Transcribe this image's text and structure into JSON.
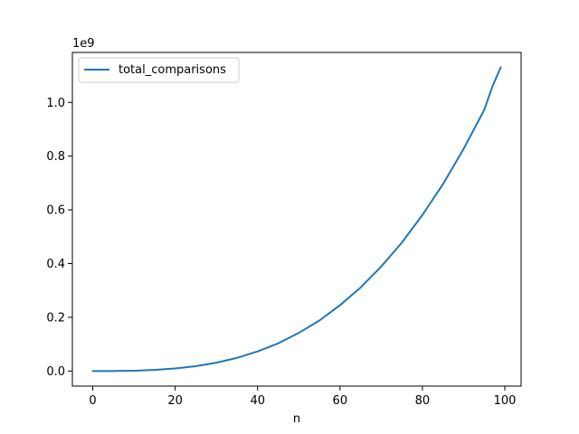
{
  "chart_data": {
    "type": "line",
    "title": "",
    "xlabel": "n",
    "ylabel": "",
    "y_scale_label": "1e9",
    "xlim": [
      -4.95,
      103.95
    ],
    "ylim": [
      -56000000,
      1186000000
    ],
    "x_ticks": [
      0,
      20,
      40,
      60,
      80,
      100
    ],
    "x_tick_labels": [
      "0",
      "20",
      "40",
      "60",
      "80",
      "100"
    ],
    "y_ticks": [
      0,
      200000000,
      400000000,
      600000000,
      800000000,
      1000000000
    ],
    "y_tick_labels": [
      "0.0",
      "0.2",
      "0.4",
      "0.6",
      "0.8",
      "1.0"
    ],
    "grid": false,
    "legend_placement": "upper-left",
    "series": [
      {
        "name": "total_comparisons",
        "color": "#1f77b4",
        "x": [
          0,
          5,
          10,
          15,
          20,
          25,
          30,
          35,
          40,
          45,
          50,
          55,
          60,
          65,
          70,
          75,
          80,
          85,
          90,
          95,
          97,
          99
        ],
        "y": [
          0,
          150000,
          1200000,
          4000000,
          9500000,
          18000000,
          31000000,
          49000000,
          73000000,
          103000000,
          142000000,
          188000000,
          245000000,
          311000000,
          389000000,
          478000000,
          581000000,
          696000000,
          827000000,
          972000000,
          1060000000,
          1130000000
        ]
      }
    ]
  }
}
